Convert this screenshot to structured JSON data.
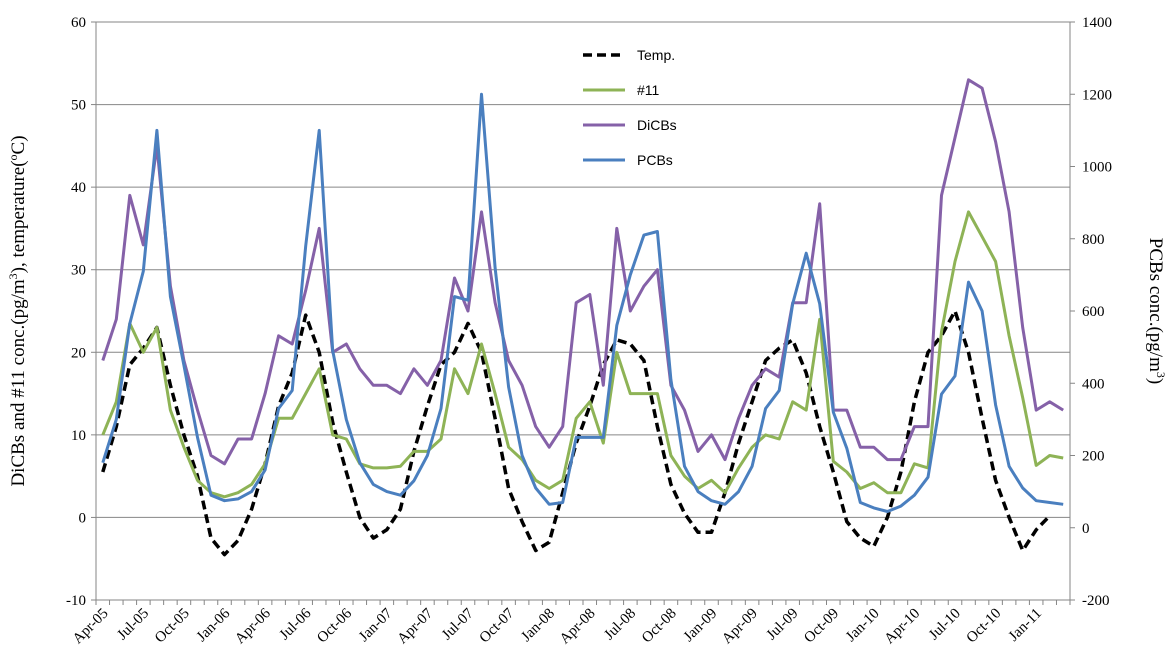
{
  "chart_data": {
    "type": "line",
    "x": [
      "Apr-05",
      "May-05",
      "Jun-05",
      "Jul-05",
      "Aug-05",
      "Sep-05",
      "Oct-05",
      "Nov-05",
      "Dec-05",
      "Jan-06",
      "Feb-06",
      "Mar-06",
      "Apr-06",
      "May-06",
      "Jun-06",
      "Jul-06",
      "Aug-06",
      "Sep-06",
      "Oct-06",
      "Nov-06",
      "Dec-06",
      "Jan-07",
      "Feb-07",
      "Mar-07",
      "Apr-07",
      "May-07",
      "Jun-07",
      "Jul-07",
      "Aug-07",
      "Sep-07",
      "Oct-07",
      "Nov-07",
      "Dec-07",
      "Jan-08",
      "Feb-08",
      "Mar-08",
      "Apr-08",
      "May-08",
      "Jun-08",
      "Jul-08",
      "Aug-08",
      "Sep-08",
      "Oct-08",
      "Nov-08",
      "Dec-08",
      "Jan-09",
      "Feb-09",
      "Mar-09",
      "Apr-09",
      "May-09",
      "Jun-09",
      "Jul-09",
      "Aug-09",
      "Sep-09",
      "Oct-09",
      "Nov-09",
      "Dec-09",
      "Jan-10",
      "Feb-10",
      "Mar-10",
      "Apr-10",
      "May-10",
      "Jun-10",
      "Jul-10",
      "Aug-10",
      "Sep-10",
      "Oct-10",
      "Nov-10",
      "Dec-10",
      "Jan-11",
      "Feb-11",
      "Mar-11"
    ],
    "x_tick_labels": [
      "Apr-05",
      "Jul-05",
      "Oct-05",
      "Jan-06",
      "Apr-06",
      "Jul-06",
      "Oct-06",
      "Jan-07",
      "Apr-07",
      "Jul-07",
      "Oct-07",
      "Jan-08",
      "Apr-08",
      "Jul-08",
      "Oct-08",
      "Jan-09",
      "Apr-09",
      "Jul-09",
      "Oct-09",
      "Jan-10",
      "Apr-10",
      "Jul-10",
      "Oct-10",
      "Jan-11"
    ],
    "y_left": {
      "label_prefix": "DiCBs and #11 conc.(pg/m",
      "label_sup": "3",
      "label_suffix": "), temperature(",
      "label_deg": "o",
      "label_end": "C)",
      "ylim": [
        -10,
        60
      ],
      "ticks": [
        -10,
        0,
        10,
        20,
        30,
        40,
        50,
        60
      ]
    },
    "y_right": {
      "label_prefix": "PCBs conc.(pg/m",
      "label_sup": "3",
      "label_end": ")",
      "ylim": [
        -200,
        1400
      ],
      "ticks": [
        -200,
        0,
        200,
        400,
        600,
        800,
        1000,
        1200,
        1400
      ]
    },
    "grid": true,
    "legend_position": "top-center",
    "series": [
      {
        "name": "Temp.",
        "axis": "left",
        "color": "#000000",
        "dashed": true,
        "values": [
          5.5,
          11,
          18.5,
          20.5,
          23,
          16,
          10,
          5,
          -2.5,
          -4.5,
          -2.8,
          1,
          6.5,
          13.5,
          17.5,
          24.5,
          20,
          11.5,
          5.5,
          0,
          -2.5,
          -1.5,
          1,
          8,
          13.5,
          18.5,
          20,
          23.5,
          20,
          12,
          3.5,
          -0.5,
          -4,
          -3,
          3,
          9,
          13.5,
          18.5,
          21.5,
          21,
          19,
          11,
          4,
          0.5,
          -1.8,
          -1.8,
          3,
          9,
          14,
          19,
          20.5,
          21.5,
          17.5,
          11,
          5.5,
          -0.5,
          -2.5,
          -3.5,
          0,
          5.5,
          14,
          20,
          22,
          25,
          20,
          12,
          4.5,
          0,
          -4,
          -1.5,
          0.2,
          null
        ]
      },
      {
        "name": "#11",
        "axis": "left",
        "color": "#8EB356",
        "values": [
          10,
          14,
          23.5,
          20,
          23,
          13,
          8.5,
          4.5,
          3,
          2.5,
          3,
          4,
          6.5,
          12,
          12,
          15,
          18,
          10,
          9.5,
          6.5,
          6,
          6,
          6.2,
          8,
          8,
          9.5,
          18,
          15,
          21,
          15,
          8.5,
          7,
          4.5,
          3.5,
          4.5,
          12,
          14,
          9,
          20,
          15,
          15,
          15,
          7.5,
          5,
          3.5,
          4.5,
          3,
          6,
          8.5,
          10,
          9.5,
          14,
          13,
          24,
          6.8,
          5.5,
          3.5,
          4.2,
          3,
          3,
          6.5,
          6,
          22.5,
          31,
          37,
          34,
          31,
          22,
          14.5,
          6.3,
          7.5,
          7.2
        ]
      },
      {
        "name": "DiCBs",
        "axis": "left",
        "color": "#8561A8",
        "values": [
          19,
          24,
          39,
          33,
          45,
          28,
          19,
          13,
          7.5,
          6.5,
          9.5,
          9.5,
          15,
          22,
          21,
          27.5,
          35,
          20,
          21,
          18,
          16,
          16,
          15,
          18,
          16,
          19,
          29,
          25,
          37,
          26,
          19,
          16,
          11,
          8.5,
          11,
          26,
          27,
          16,
          35,
          25,
          28,
          30,
          16,
          13,
          8,
          10,
          7,
          12,
          16,
          18,
          17,
          26,
          26,
          38,
          13,
          13,
          8.5,
          8.5,
          7,
          7,
          11,
          11,
          39,
          46,
          53,
          52,
          45.5,
          37,
          23,
          13,
          14,
          13
        ]
      },
      {
        "name": "PCBs",
        "axis": "right",
        "color": "#4A7FBF",
        "values": [
          180,
          300,
          565,
          710,
          1100,
          640,
          450,
          250,
          90,
          75,
          80,
          100,
          160,
          330,
          380,
          780,
          1100,
          490,
          300,
          180,
          120,
          100,
          90,
          130,
          200,
          330,
          640,
          630,
          1200,
          720,
          390,
          200,
          110,
          65,
          70,
          250,
          250,
          250,
          560,
          700,
          810,
          820,
          410,
          170,
          100,
          75,
          65,
          100,
          170,
          330,
          380,
          620,
          760,
          620,
          320,
          220,
          70,
          55,
          45,
          60,
          90,
          140,
          370,
          420,
          680,
          600,
          340,
          170,
          110,
          75,
          70,
          65
        ]
      }
    ]
  }
}
